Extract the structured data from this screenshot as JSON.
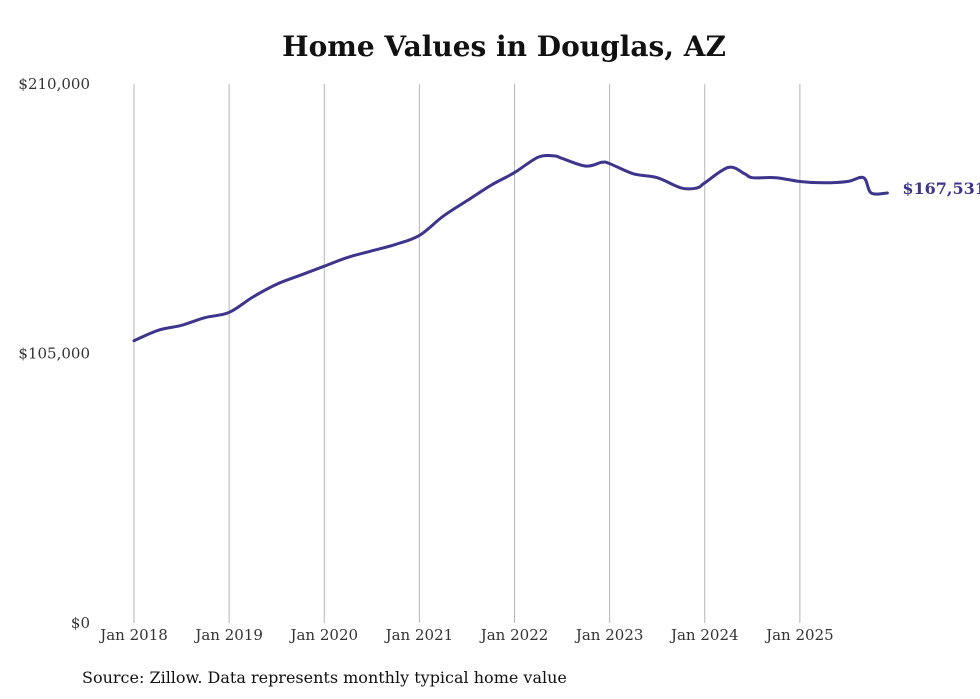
{
  "chart_data": {
    "type": "line",
    "title": "Home Values in Douglas, AZ",
    "xlabel": "",
    "ylabel": "",
    "ylim": [
      0,
      210000
    ],
    "y_ticks": [
      "$0",
      "$105,000",
      "$210,000"
    ],
    "y_tick_values": [
      0,
      105000,
      210000
    ],
    "x_ticks": [
      "Jan 2018",
      "Jan 2019",
      "Jan 2020",
      "Jan 2021",
      "Jan 2022",
      "Jan 2023",
      "Jan 2024",
      "Jan 2025"
    ],
    "x_tick_values": [
      2018,
      2019,
      2020,
      2021,
      2022,
      2023,
      2024,
      2025
    ],
    "grid": "vertical",
    "line_color": "#3d348b",
    "series": [
      {
        "name": "Typical home value",
        "x": [
          2018.0,
          2018.25,
          2018.5,
          2018.75,
          2019.0,
          2019.25,
          2019.5,
          2019.75,
          2020.0,
          2020.25,
          2020.5,
          2020.75,
          2021.0,
          2021.25,
          2021.5,
          2021.75,
          2022.0,
          2022.25,
          2022.42,
          2022.5,
          2022.75,
          2022.92,
          2023.0,
          2023.25,
          2023.5,
          2023.75,
          2023.92,
          2024.0,
          2024.25,
          2024.42,
          2024.5,
          2024.75,
          2025.0,
          2025.25,
          2025.5,
          2025.67,
          2025.75,
          2025.92
        ],
        "values": [
          110000,
          114000,
          116000,
          119000,
          121000,
          127000,
          132000,
          135500,
          139000,
          142500,
          145000,
          147500,
          151000,
          158500,
          164500,
          170500,
          175500,
          181500,
          182000,
          181000,
          178000,
          179500,
          179000,
          175000,
          173500,
          169500,
          169500,
          171500,
          177500,
          175000,
          173500,
          173500,
          172000,
          171500,
          172000,
          173500,
          167531,
          167531
        ],
        "end_label": "$167,531"
      }
    ]
  },
  "footer": {
    "source": "Source: Zillow. Data represents monthly typical home value"
  }
}
